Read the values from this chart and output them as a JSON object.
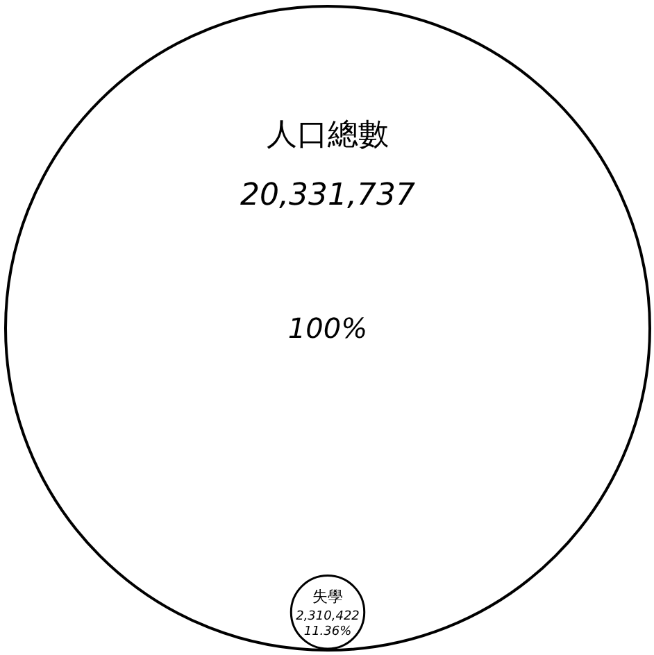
{
  "chart_data": {
    "type": "other",
    "categories": [
      "人口總數",
      "失學"
    ],
    "values": [
      20331737,
      2310422
    ],
    "value_labels": [
      "20,331,737",
      "2,310,422"
    ],
    "annotations": [
      "100%",
      "11.36%"
    ]
  }
}
